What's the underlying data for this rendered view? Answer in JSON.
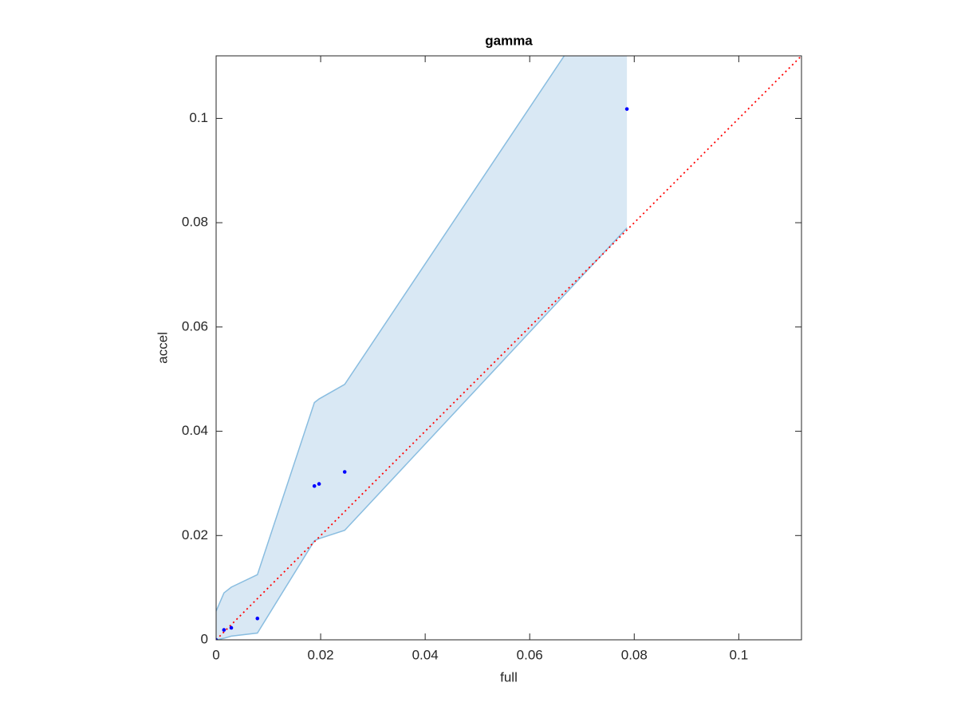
{
  "chart_data": {
    "type": "scatter",
    "title": "gamma",
    "xlabel": "full",
    "ylabel": "accel",
    "xlim": [
      0,
      0.112
    ],
    "ylim": [
      0,
      0.112
    ],
    "xticks": [
      0,
      0.02,
      0.04,
      0.06,
      0.08,
      0.1
    ],
    "yticks": [
      0,
      0.02,
      0.04,
      0.06,
      0.08,
      0.1
    ],
    "grid": false,
    "points": {
      "x": [
        0,
        0.0015,
        0.0029,
        0.0079,
        0.0188,
        0.0197,
        0.0246,
        0.0786
      ],
      "y": [
        0,
        0.0019,
        0.0023,
        0.0041,
        0.0295,
        0.0299,
        0.0322,
        0.1018
      ],
      "color": "#0000ff"
    },
    "band": {
      "x": [
        0,
        0.0015,
        0.0029,
        0.0079,
        0.0188,
        0.0197,
        0.0246,
        0.0786
      ],
      "upper": [
        0.0055,
        0.009,
        0.0101,
        0.0125,
        0.0455,
        0.0462,
        0.049,
        0.13
      ],
      "lower": [
        0,
        0.0003,
        0.0007,
        0.0013,
        0.019,
        0.0194,
        0.021,
        0.079
      ],
      "color": "#d9e8f4",
      "edge_color": "#89bde0"
    },
    "reference_line": {
      "x": [
        0,
        0.112
      ],
      "y": [
        0,
        0.112
      ],
      "color": "#ff0000"
    }
  }
}
